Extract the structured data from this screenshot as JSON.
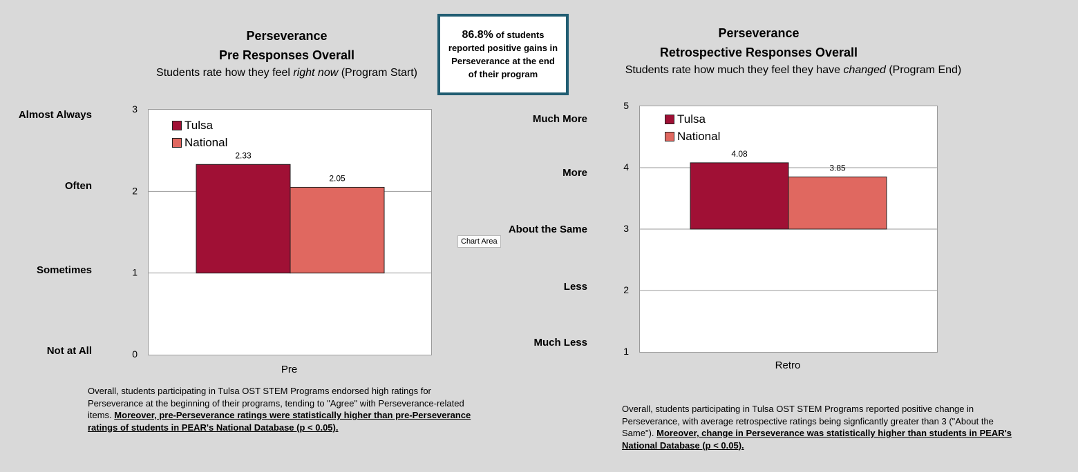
{
  "callout": {
    "highlight": "86.8%",
    "text": "of students reported positive gains in Perseverance at the end of their program"
  },
  "tooltip": {
    "label": "Chart Area"
  },
  "colors": {
    "tulsa": "#a01035",
    "national": "#e06860",
    "callout_border": "#215d72"
  },
  "chart_data": [
    {
      "type": "bar",
      "title": "Perseverance",
      "title_line2": "Pre Responses Overall",
      "subtitle_parts": [
        "Students rate how they feel ",
        "right now",
        " (Program Start)"
      ],
      "categories": [
        "Pre"
      ],
      "series": [
        {
          "name": "Tulsa",
          "values": [
            2.33
          ]
        },
        {
          "name": "National",
          "values": [
            2.05
          ]
        }
      ],
      "data_labels": [
        "2.33",
        "2.05"
      ],
      "bar_base": 1,
      "ylim": [
        0,
        3
      ],
      "y_ticks": [
        "0",
        "1",
        "2",
        "3"
      ],
      "scale_labels": [
        {
          "label": "Almost Always",
          "level": 2.92
        },
        {
          "label": "Often",
          "level": 2.05
        },
        {
          "label": "Sometimes",
          "level": 1.02
        },
        {
          "label": "Not at All",
          "level": 0.03
        }
      ],
      "grid": true,
      "legend": "top-left",
      "caption": {
        "plain": "Overall, students participating in Tulsa OST STEM Programs endorsed high ratings for Perseverance at the beginning of their programs, tending to \"Agree\" with Perseverance-related items. ",
        "emphasis": "Moreover, pre-Perseverance ratings were statistically higher than pre-Perseverance ratings of students in PEAR's National Database (p < 0.05)."
      }
    },
    {
      "type": "bar",
      "title": "Perseverance",
      "title_line2": "Retrospective Responses Overall",
      "subtitle_parts": [
        "Students rate how much they feel  they have ",
        "changed",
        " (Program End)"
      ],
      "categories": [
        "Retro"
      ],
      "series": [
        {
          "name": "Tulsa",
          "values": [
            4.08
          ]
        },
        {
          "name": "National",
          "values": [
            3.85
          ]
        }
      ],
      "data_labels": [
        "4.08",
        "3.85"
      ],
      "bar_base": 3,
      "ylim": [
        1,
        5
      ],
      "y_ticks": [
        "1",
        "2",
        "3",
        "4",
        "5"
      ],
      "scale_labels": [
        {
          "label": "Much More",
          "level": 4.78
        },
        {
          "label": "More",
          "level": 3.9
        },
        {
          "label": "About the Same",
          "level": 2.98
        },
        {
          "label": "Less",
          "level": 2.05
        },
        {
          "label": "Much Less",
          "level": 1.13
        }
      ],
      "grid": true,
      "legend": "top-left",
      "caption": {
        "plain": "Overall, students participating in Tulsa OST STEM Programs reported positive change in Perseverance, with average retrospective ratings being signficantly greater than 3 (\"About the Same\"). ",
        "emphasis": "Moreover, change in Perseverance was statistically higher than students in PEAR's National Database (p < 0.05)."
      }
    }
  ]
}
